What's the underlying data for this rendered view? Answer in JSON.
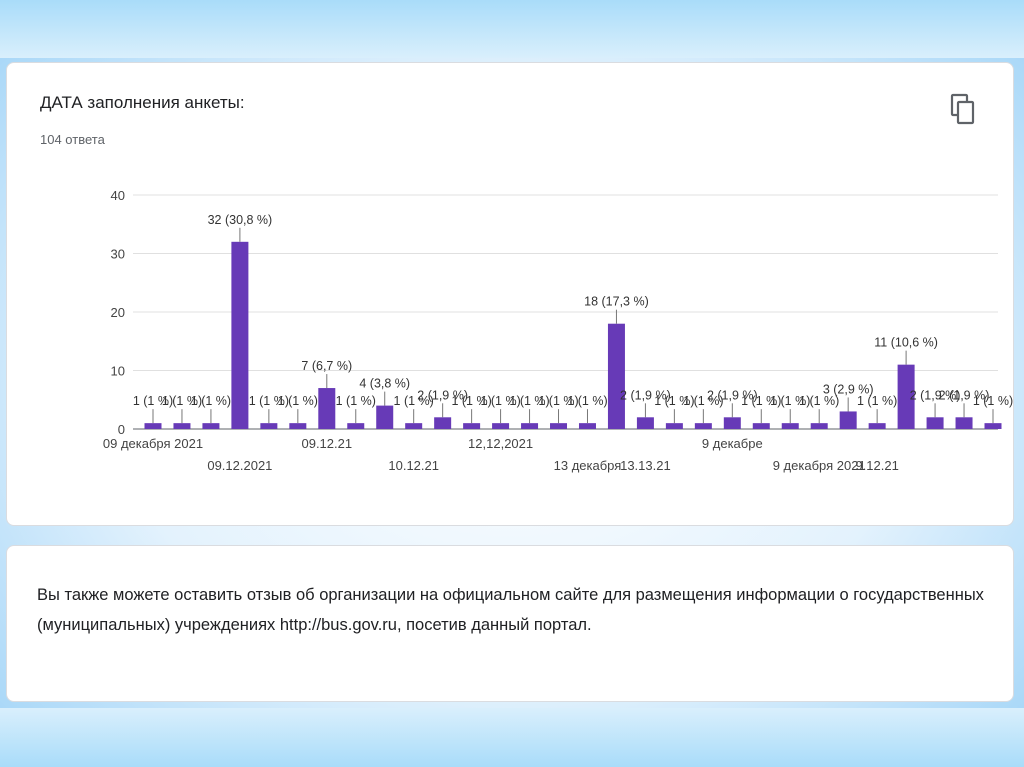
{
  "card": {
    "title": "ДАТА заполнения анкеты:",
    "responses": "104 ответа"
  },
  "icons": {
    "copy": "copy-icon"
  },
  "colors": {
    "bar": "#673ab7"
  },
  "note": "Вы также можете оставить отзыв об организации на официальном сайте для размещения информации о государственных (муниципальных) учреждениях http://bus.gov.ru, посетив данный портал.",
  "chart_data": {
    "type": "bar",
    "title": "",
    "xlabel": "",
    "ylabel": "",
    "ylim": [
      0,
      40
    ],
    "yticks": [
      0,
      10,
      20,
      30,
      40
    ],
    "grid": true,
    "categories": [
      "09 декабря 2021",
      "",
      "",
      "09.12.2021",
      "",
      "",
      "09.12.21",
      "",
      "",
      "10.12.21",
      "",
      "",
      "12,12,2021",
      "",
      "",
      "13 декабря",
      "",
      "13.13.21",
      "",
      "",
      "9 декабре",
      "",
      "",
      "9 декабря 2021",
      "",
      "9.12.21",
      "",
      "",
      "",
      ""
    ],
    "values": [
      1,
      1,
      1,
      32,
      1,
      1,
      7,
      1,
      4,
      1,
      2,
      1,
      1,
      1,
      1,
      1,
      18,
      2,
      1,
      1,
      2,
      1,
      1,
      1,
      3,
      1,
      11,
      2,
      2,
      1
    ],
    "data_labels": [
      "1 (1 %)",
      "1 (1 %)",
      "1 (1 %)",
      "32 (30,8 %)",
      "1 (1 %)",
      "1 (1 %)",
      "7 (6,7 %)",
      "1 (1 %)",
      "4 (3,8 %)",
      "1 (1 %)",
      "2 (1,9 %)",
      "1 (1 %)",
      "1 (1 %)",
      "1 (1 %)",
      "1 (1 %)",
      "1 (1 %)",
      "18 (17,3 %)",
      "2 (1,9 %)",
      "1 (1 %)",
      "1 (1 %)",
      "2 (1,9 %)",
      "1 (1 %)",
      "1 (1 %)",
      "1 (1 %)",
      "3 (2,9 %)",
      "1 (1 %)",
      "11 (10,6 %)",
      "2 (1,9 %)",
      "2 (1,9 %)",
      "1 (1 %)"
    ]
  }
}
